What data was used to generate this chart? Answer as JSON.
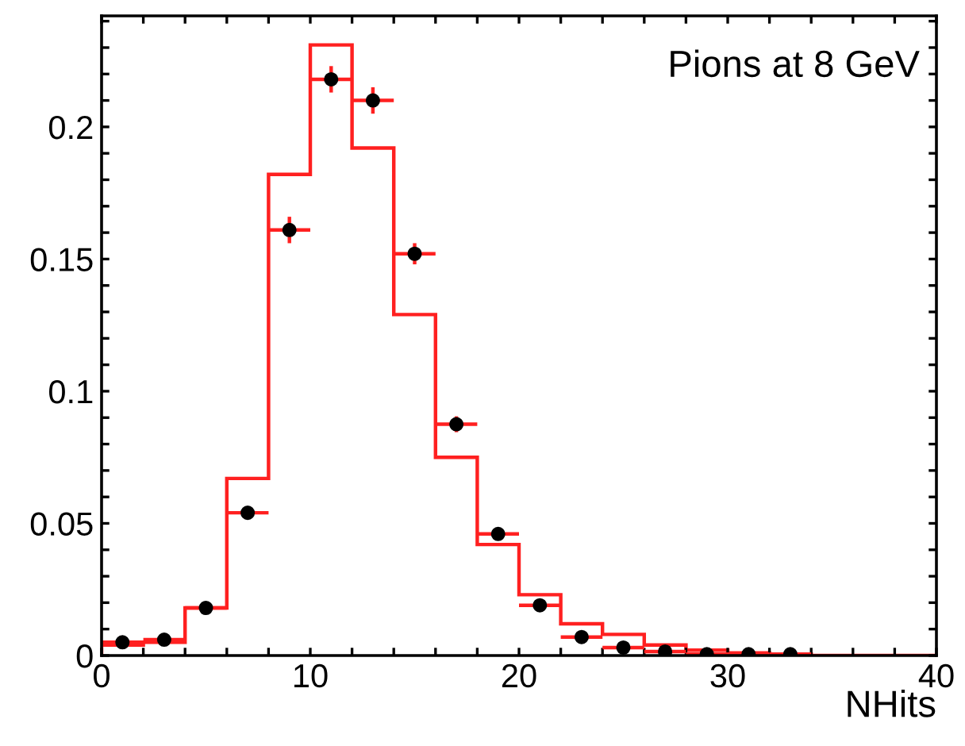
{
  "chart_data": {
    "type": "histogram",
    "xlabel": "NHits",
    "annotations": [
      "Pions at 8 GeV"
    ],
    "xlim": [
      0,
      40
    ],
    "ylim": [
      0,
      0.242
    ],
    "xticks": [
      0,
      {
        "value": 2,
        "label": null
      },
      {
        "value": 4,
        "label": null
      },
      {
        "value": 6,
        "label": null
      },
      {
        "value": 8,
        "label": null
      },
      10,
      {
        "value": 12,
        "label": null
      },
      {
        "value": 14,
        "label": null
      },
      {
        "value": 16,
        "label": null
      },
      {
        "value": 18,
        "label": null
      },
      20,
      {
        "value": 22,
        "label": null
      },
      {
        "value": 24,
        "label": null
      },
      {
        "value": 26,
        "label": null
      },
      {
        "value": 28,
        "label": null
      },
      30,
      {
        "value": 32,
        "label": null
      },
      {
        "value": 34,
        "label": null
      },
      {
        "value": 36,
        "label": null
      },
      {
        "value": 38,
        "label": null
      },
      40
    ],
    "yticks": [
      0,
      {
        "value": 0.01,
        "label": null
      },
      {
        "value": 0.02,
        "label": null
      },
      {
        "value": 0.03,
        "label": null
      },
      {
        "value": 0.04,
        "label": null
      },
      0.05,
      {
        "value": 0.06,
        "label": null
      },
      {
        "value": 0.07,
        "label": null
      },
      {
        "value": 0.08,
        "label": null
      },
      {
        "value": 0.09,
        "label": null
      },
      0.1,
      {
        "value": 0.11,
        "label": null
      },
      {
        "value": 0.12,
        "label": null
      },
      {
        "value": 0.13,
        "label": null
      },
      {
        "value": 0.14,
        "label": null
      },
      0.15,
      {
        "value": 0.16,
        "label": null
      },
      {
        "value": 0.17,
        "label": null
      },
      {
        "value": 0.18,
        "label": null
      },
      {
        "value": 0.19,
        "label": null
      },
      0.2,
      {
        "value": 0.21,
        "label": null
      },
      {
        "value": 0.22,
        "label": null
      },
      {
        "value": 0.23,
        "label": null
      },
      {
        "value": 0.24,
        "label": null
      }
    ],
    "grid": false,
    "legend": false,
    "series": [
      {
        "type": "histogram",
        "color": "#ff2020",
        "bins": [
          0,
          2,
          4,
          6,
          8,
          10,
          12,
          14,
          16,
          18,
          20,
          22,
          24,
          26,
          28,
          30,
          32,
          34,
          36,
          38,
          40
        ],
        "values": [
          0.004,
          0.005,
          0.018,
          0.067,
          0.182,
          0.231,
          0.192,
          0.129,
          0.075,
          0.042,
          0.023,
          0.012,
          0.008,
          0.004,
          0.002,
          0.001,
          0.0005,
          0,
          0,
          0
        ]
      },
      {
        "type": "scatter",
        "color": "#000000",
        "marker": "circle",
        "x": [
          1,
          3,
          5,
          7,
          9,
          11,
          13,
          15,
          17,
          19,
          21,
          23,
          25,
          27,
          29,
          31,
          33
        ],
        "values": [
          0.005,
          0.006,
          0.018,
          0.054,
          0.161,
          0.218,
          0.21,
          0.152,
          0.0875,
          0.046,
          0.019,
          0.007,
          0.003,
          0.0015,
          0.0005,
          0.0005,
          0.0005
        ],
        "errors": [
          null,
          null,
          null,
          null,
          0.005,
          0.005,
          0.005,
          0.004,
          0.003,
          null,
          null,
          null,
          null,
          null,
          null,
          null,
          null
        ],
        "xerrors": [
          1,
          1,
          1,
          1,
          1,
          1,
          1,
          1,
          1,
          1,
          1,
          1,
          1,
          1,
          1,
          1,
          1
        ]
      }
    ]
  }
}
